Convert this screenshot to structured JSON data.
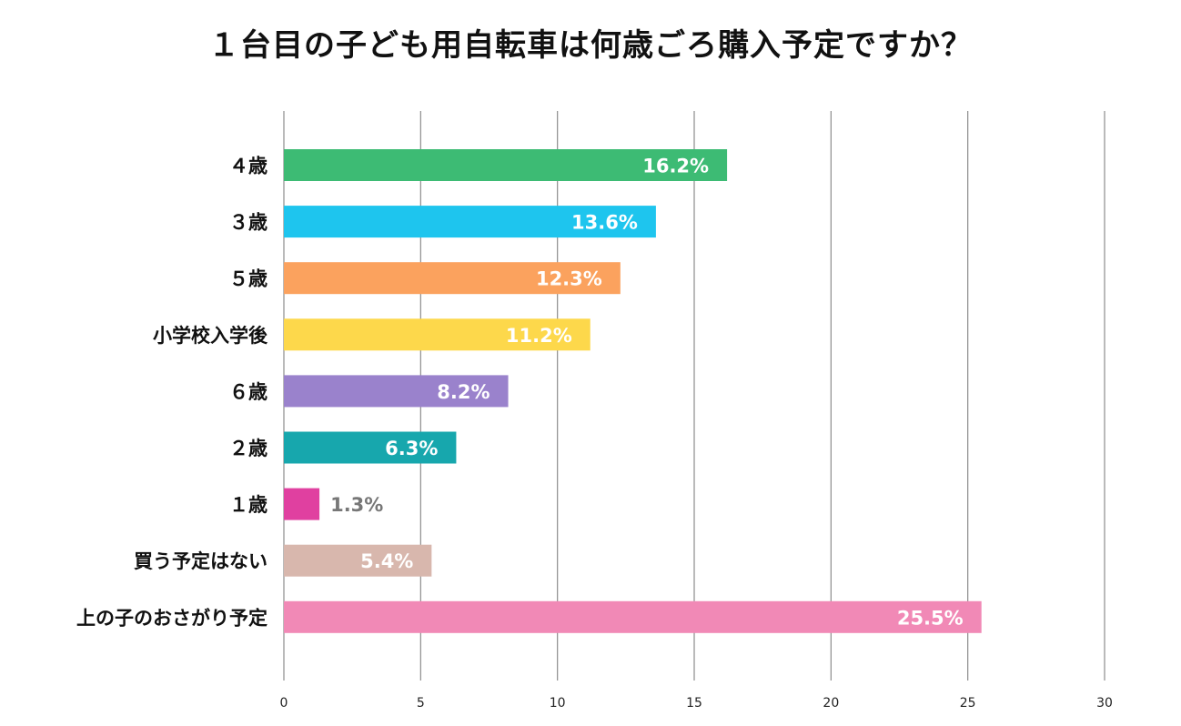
{
  "chart_data": {
    "type": "bar",
    "orientation": "horizontal",
    "title": "１台目の子ども用自転車は何歳ごろ購入予定ですか？",
    "categories": [
      "４歳",
      "３歳",
      "５歳",
      "小学校入学後",
      "６歳",
      "２歳",
      "１歳",
      "買う予定はない",
      "上の子のおさがり予定"
    ],
    "values": [
      16.2,
      13.6,
      12.3,
      11.2,
      8.2,
      6.3,
      1.3,
      5.4,
      25.5
    ],
    "value_labels": [
      "16.2%",
      "13.6%",
      "12.3%",
      "11.2%",
      "8.2%",
      "6.3%",
      "1.3%",
      "5.4%",
      "25.5%"
    ],
    "colors": [
      "#3dbb74",
      "#1ec5ee",
      "#fba25e",
      "#fdd84b",
      "#9a82cc",
      "#17a7ad",
      "#e040a0",
      "#d8b7ad",
      "#f189b6"
    ],
    "label_colors": [
      "#ffffff",
      "#ffffff",
      "#ffffff",
      "#ffffff",
      "#ffffff",
      "#ffffff",
      "#777777",
      "#ffffff",
      "#ffffff"
    ],
    "xlim": [
      0,
      30
    ],
    "xticks": [
      0,
      5,
      10,
      15,
      20,
      25,
      30
    ],
    "xlabel": "",
    "ylabel": "",
    "grid": true
  }
}
